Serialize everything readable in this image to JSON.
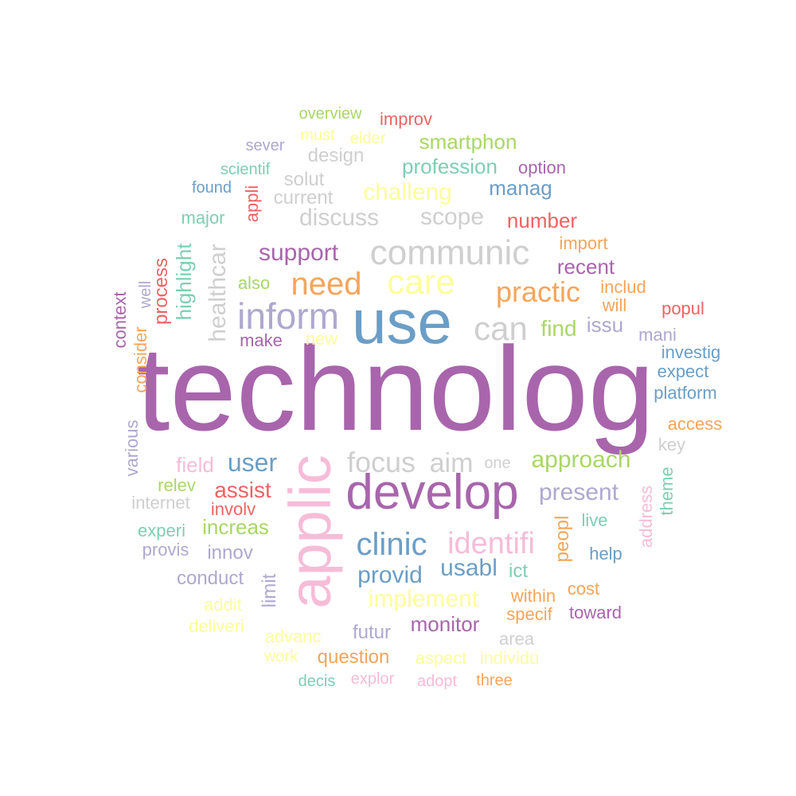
{
  "palette": {
    "purple": "#A865AC",
    "blue": "#6B9EC6",
    "pink": "#F6BCD8",
    "grey": "#CFCFCF",
    "yellow": "#FDFD9D",
    "lavender": "#AFA8CF",
    "orange": "#F5A55A",
    "green": "#A9D765",
    "teal": "#7FCEB2",
    "red": "#EE6363"
  },
  "words": [
    {
      "text": "technolog",
      "color": "purple"
    },
    {
      "text": "use",
      "color": "blue"
    },
    {
      "text": "applic",
      "color": "pink"
    },
    {
      "text": "develop",
      "color": "purple"
    },
    {
      "text": "communic",
      "color": "grey"
    },
    {
      "text": "care",
      "color": "yellow"
    },
    {
      "text": "inform",
      "color": "lavender"
    },
    {
      "text": "need",
      "color": "orange"
    },
    {
      "text": "can",
      "color": "grey"
    },
    {
      "text": "practic",
      "color": "orange"
    },
    {
      "text": "clinic",
      "color": "blue"
    },
    {
      "text": "identifi",
      "color": "pink"
    },
    {
      "text": "focus",
      "color": "grey"
    },
    {
      "text": "aim",
      "color": "grey"
    },
    {
      "text": "approach",
      "color": "green"
    },
    {
      "text": "implement",
      "color": "yellow"
    },
    {
      "text": "provid",
      "color": "blue"
    },
    {
      "text": "usabl",
      "color": "blue"
    },
    {
      "text": "present",
      "color": "lavender"
    },
    {
      "text": "user",
      "color": "blue"
    },
    {
      "text": "support",
      "color": "purple"
    },
    {
      "text": "healthcar",
      "color": "grey"
    },
    {
      "text": "challeng",
      "color": "yellow"
    },
    {
      "text": "discuss",
      "color": "grey"
    },
    {
      "text": "scope",
      "color": "grey"
    },
    {
      "text": "number",
      "color": "red"
    },
    {
      "text": "profession",
      "color": "teal"
    },
    {
      "text": "manag",
      "color": "blue"
    },
    {
      "text": "smartphon",
      "color": "green"
    },
    {
      "text": "recent",
      "color": "purple"
    },
    {
      "text": "find",
      "color": "green"
    },
    {
      "text": "issu",
      "color": "lavender"
    },
    {
      "text": "monitor",
      "color": "purple"
    },
    {
      "text": "assist",
      "color": "red"
    },
    {
      "text": "increas",
      "color": "green"
    },
    {
      "text": "field",
      "color": "pink"
    },
    {
      "text": "highlight",
      "color": "teal"
    },
    {
      "text": "process",
      "color": "red"
    },
    {
      "text": "peopl",
      "color": "orange"
    },
    {
      "text": "innov",
      "color": "lavender"
    },
    {
      "text": "conduct",
      "color": "lavender"
    },
    {
      "text": "limit",
      "color": "lavender"
    },
    {
      "text": "futur",
      "color": "lavender"
    },
    {
      "text": "question",
      "color": "orange"
    },
    {
      "text": "advanc",
      "color": "yellow"
    },
    {
      "text": "design",
      "color": "grey"
    },
    {
      "text": "current",
      "color": "grey"
    },
    {
      "text": "solut",
      "color": "grey"
    },
    {
      "text": "improv",
      "color": "red"
    },
    {
      "text": "overview",
      "color": "green"
    },
    {
      "text": "must",
      "color": "yellow"
    },
    {
      "text": "elder",
      "color": "yellow"
    },
    {
      "text": "sever",
      "color": "lavender"
    },
    {
      "text": "scientif",
      "color": "teal"
    },
    {
      "text": "found",
      "color": "blue"
    },
    {
      "text": "appli",
      "color": "red"
    },
    {
      "text": "major",
      "color": "teal"
    },
    {
      "text": "option",
      "color": "purple"
    },
    {
      "text": "import",
      "color": "orange"
    },
    {
      "text": "includ",
      "color": "orange"
    },
    {
      "text": "will",
      "color": "orange"
    },
    {
      "text": "popul",
      "color": "red"
    },
    {
      "text": "mani",
      "color": "lavender"
    },
    {
      "text": "investig",
      "color": "blue"
    },
    {
      "text": "expect",
      "color": "blue"
    },
    {
      "text": "platform",
      "color": "blue"
    },
    {
      "text": "access",
      "color": "orange"
    },
    {
      "text": "key",
      "color": "grey"
    },
    {
      "text": "theme",
      "color": "teal"
    },
    {
      "text": "address",
      "color": "pink"
    },
    {
      "text": "live",
      "color": "teal"
    },
    {
      "text": "help",
      "color": "blue"
    },
    {
      "text": "ict",
      "color": "teal"
    },
    {
      "text": "within",
      "color": "orange"
    },
    {
      "text": "cost",
      "color": "orange"
    },
    {
      "text": "specif",
      "color": "orange"
    },
    {
      "text": "toward",
      "color": "purple"
    },
    {
      "text": "area",
      "color": "grey"
    },
    {
      "text": "individu",
      "color": "yellow"
    },
    {
      "text": "aspect",
      "color": "yellow"
    },
    {
      "text": "three",
      "color": "orange"
    },
    {
      "text": "adopt",
      "color": "pink"
    },
    {
      "text": "explor",
      "color": "pink"
    },
    {
      "text": "decis",
      "color": "teal"
    },
    {
      "text": "work",
      "color": "yellow"
    },
    {
      "text": "deliveri",
      "color": "yellow"
    },
    {
      "text": "addit",
      "color": "yellow"
    },
    {
      "text": "provis",
      "color": "lavender"
    },
    {
      "text": "experi",
      "color": "teal"
    },
    {
      "text": "involv",
      "color": "red"
    },
    {
      "text": "internet",
      "color": "grey"
    },
    {
      "text": "relev",
      "color": "green"
    },
    {
      "text": "various",
      "color": "lavender"
    },
    {
      "text": "context",
      "color": "purple"
    },
    {
      "text": "well",
      "color": "lavender"
    },
    {
      "text": "consider",
      "color": "orange"
    },
    {
      "text": "also",
      "color": "green"
    },
    {
      "text": "make",
      "color": "purple"
    },
    {
      "text": "new",
      "color": "yellow"
    },
    {
      "text": "one",
      "color": "grey"
    }
  ]
}
